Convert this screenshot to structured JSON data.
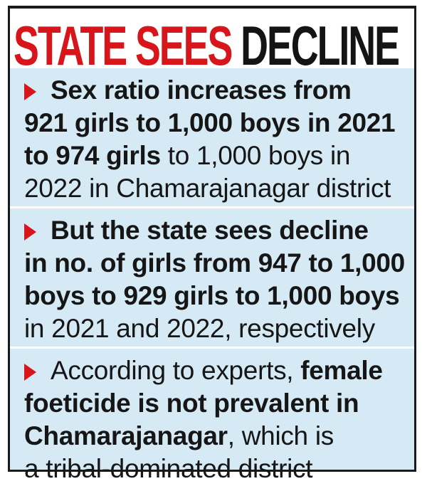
{
  "headline": {
    "part_red": "STATE SEES",
    "part_dark": "DECLINE"
  },
  "points": [
    {
      "line1_bold": "Sex ratio increases from",
      "line2_bold": "921 girls to 1,000 boys in 2021",
      "line3_bold": "to 974 girls",
      "line3_regular": " to 1,000 boys in",
      "line4_regular": "2022 in Chamarajanagar district"
    },
    {
      "line1_bold": "But the state sees decline",
      "line2_bold": "in no. of girls from 947 to 1,000",
      "line3_bold": "boys to 929 girls to 1,000 boys",
      "line4_regular": "in 2021 and 2022, respectively"
    },
    {
      "line1_regular": "According to experts, ",
      "line1_bold": "female",
      "line2_bold": "foeticide is not prevalent in",
      "line3_bold": "Chamarajanagar",
      "line3_regular": ", which is",
      "line4_regular": "a tribal-dominated district"
    }
  ],
  "colors": {
    "accent_red": "#d7151b",
    "panel_blue": "#d5eaf5",
    "text_dark": "#161616"
  },
  "icons": {
    "bullet": "red-triangle-arrow-icon"
  }
}
